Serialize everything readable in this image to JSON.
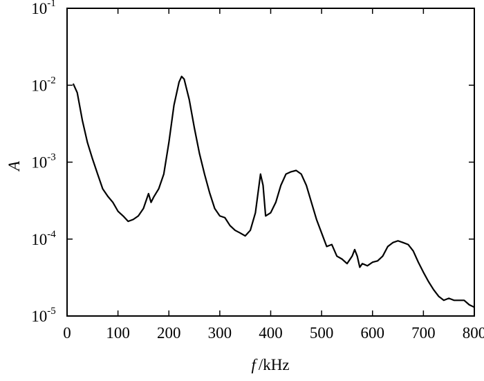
{
  "chart_data": {
    "type": "line",
    "xlabel": "f",
    "xlabel_unit": "/kHz",
    "ylabel": "A",
    "xlim": [
      0,
      800
    ],
    "xticks": [
      0,
      100,
      200,
      300,
      400,
      500,
      600,
      700,
      800
    ],
    "ylim": [
      1e-05,
      0.1
    ],
    "log_y": true,
    "yticks": [
      {
        "value": 1e-05,
        "label": "10",
        "exponent": "-5"
      },
      {
        "value": 0.0001,
        "label": "10",
        "exponent": "-4"
      },
      {
        "value": 0.001,
        "label": "10",
        "exponent": "-3"
      },
      {
        "value": 0.01,
        "label": "10",
        "exponent": "-2"
      },
      {
        "value": 0.1,
        "label": "10",
        "exponent": "-1"
      }
    ],
    "x": [
      12,
      20,
      30,
      40,
      50,
      60,
      70,
      80,
      90,
      100,
      110,
      120,
      130,
      140,
      150,
      160,
      165,
      170,
      180,
      190,
      200,
      210,
      220,
      225,
      230,
      240,
      250,
      260,
      270,
      280,
      290,
      300,
      310,
      320,
      330,
      340,
      350,
      360,
      370,
      380,
      385,
      390,
      400,
      410,
      420,
      430,
      440,
      450,
      460,
      470,
      480,
      490,
      500,
      510,
      520,
      530,
      540,
      550,
      560,
      565,
      570,
      575,
      580,
      590,
      600,
      610,
      620,
      630,
      640,
      650,
      660,
      670,
      680,
      690,
      700,
      710,
      720,
      730,
      740,
      750,
      760,
      770,
      780,
      790,
      800
    ],
    "series": [
      {
        "color": "#000000",
        "values": [
          0.0105,
          0.008,
          0.0035,
          0.0018,
          0.0011,
          0.0007,
          0.00045,
          0.00036,
          0.0003,
          0.00023,
          0.0002,
          0.00017,
          0.00018,
          0.0002,
          0.00025,
          0.00039,
          0.0003,
          0.00035,
          0.00045,
          0.0007,
          0.0018,
          0.0055,
          0.011,
          0.013,
          0.012,
          0.0065,
          0.0028,
          0.0013,
          0.0007,
          0.0004,
          0.00025,
          0.0002,
          0.00019,
          0.00015,
          0.00013,
          0.00012,
          0.00011,
          0.00013,
          0.00022,
          0.0007,
          0.0005,
          0.0002,
          0.00022,
          0.0003,
          0.0005,
          0.0007,
          0.00075,
          0.00078,
          0.0007,
          0.0005,
          0.0003,
          0.00018,
          0.00012,
          8e-05,
          8.5e-05,
          6e-05,
          5.5e-05,
          4.8e-05,
          6e-05,
          7.3e-05,
          6e-05,
          4.3e-05,
          4.8e-05,
          4.5e-05,
          5e-05,
          5.2e-05,
          6e-05,
          8e-05,
          9e-05,
          9.5e-05,
          9e-05,
          8.5e-05,
          7e-05,
          5e-05,
          3.7e-05,
          2.8e-05,
          2.2e-05,
          1.8e-05,
          1.6e-05,
          1.7e-05,
          1.6e-05,
          1.6e-05,
          1.6e-05,
          1.4e-05,
          1.3e-05
        ]
      }
    ]
  }
}
